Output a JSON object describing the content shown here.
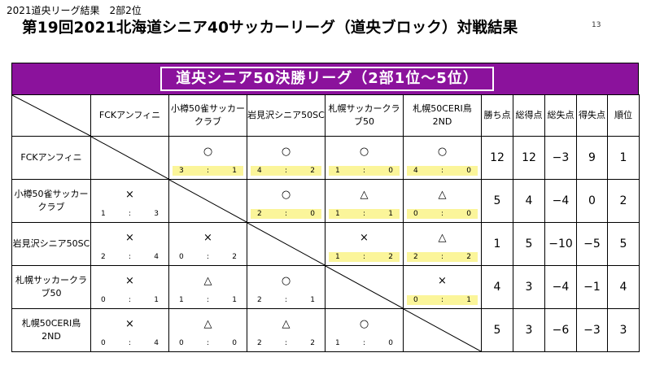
{
  "doc_label": "2021道央リーグ結果　2部2位",
  "title": "第19回2021北海道シニア40サッカーリーグ（道央ブロック）対戦結果",
  "page_mark": "13",
  "banner": "道央シニア50決勝リーグ（2部1位～5位）",
  "columns": [
    "FCKアンフィニ",
    "小樽50雀サッカークラブ",
    "岩見沢シニア50SC",
    "札幌サッカークラブ50",
    "札幌50CERI鳥2ND"
  ],
  "stat_headers": [
    "勝ち点",
    "総得点",
    "総失点",
    "得失点",
    "順位"
  ],
  "rows": [
    {
      "team": "FCKアンフィニ",
      "results": [
        null,
        {
          "mark": "○",
          "for": "3",
          "sep": ":",
          "against": "1",
          "win": true
        },
        {
          "mark": "○",
          "for": "4",
          "sep": ":",
          "against": "2",
          "win": true
        },
        {
          "mark": "○",
          "for": "1",
          "sep": ":",
          "against": "0",
          "win": true
        },
        {
          "mark": "○",
          "for": "4",
          "sep": ":",
          "against": "0",
          "win": true
        }
      ],
      "stats": [
        "12",
        "12",
        "−3",
        "9",
        "1"
      ]
    },
    {
      "team": "小樽50雀サッカークラブ",
      "results": [
        {
          "mark": "×",
          "for": "1",
          "sep": ":",
          "against": "3",
          "win": false
        },
        null,
        {
          "mark": "○",
          "for": "2",
          "sep": ":",
          "against": "0",
          "win": true
        },
        {
          "mark": "△",
          "for": "1",
          "sep": ":",
          "against": "1",
          "win": true
        },
        {
          "mark": "△",
          "for": "0",
          "sep": ":",
          "against": "0",
          "win": true
        }
      ],
      "stats": [
        "5",
        "4",
        "−4",
        "0",
        "2"
      ]
    },
    {
      "team": "岩見沢シニア50SC",
      "results": [
        {
          "mark": "×",
          "for": "2",
          "sep": ":",
          "against": "4",
          "win": false
        },
        {
          "mark": "×",
          "for": "0",
          "sep": ":",
          "against": "2",
          "win": false
        },
        null,
        {
          "mark": "×",
          "for": "1",
          "sep": ":",
          "against": "2",
          "win": true
        },
        {
          "mark": "△",
          "for": "2",
          "sep": ":",
          "against": "2",
          "win": true
        }
      ],
      "stats": [
        "1",
        "5",
        "−10",
        "−5",
        "5"
      ]
    },
    {
      "team": "札幌サッカークラブ50",
      "results": [
        {
          "mark": "×",
          "for": "0",
          "sep": ":",
          "against": "1",
          "win": false
        },
        {
          "mark": "△",
          "for": "1",
          "sep": ":",
          "against": "1",
          "win": false
        },
        {
          "mark": "○",
          "for": "2",
          "sep": ":",
          "against": "1",
          "win": false
        },
        null,
        {
          "mark": "×",
          "for": "0",
          "sep": ":",
          "against": "1",
          "win": true
        }
      ],
      "stats": [
        "4",
        "3",
        "−4",
        "−1",
        "4"
      ]
    },
    {
      "team": "札幌50CERI鳥2ND",
      "results": [
        {
          "mark": "×",
          "for": "0",
          "sep": ":",
          "against": "4",
          "win": false
        },
        {
          "mark": "△",
          "for": "0",
          "sep": ":",
          "against": "0",
          "win": false
        },
        {
          "mark": "△",
          "for": "2",
          "sep": ":",
          "against": "2",
          "win": false
        },
        {
          "mark": "○",
          "for": "1",
          "sep": ":",
          "against": "0",
          "win": false
        },
        null
      ],
      "stats": [
        "5",
        "3",
        "−6",
        "−3",
        "3"
      ]
    }
  ],
  "colors": {
    "banner": "#8b129c",
    "score_highlight": "#fbf59a"
  }
}
